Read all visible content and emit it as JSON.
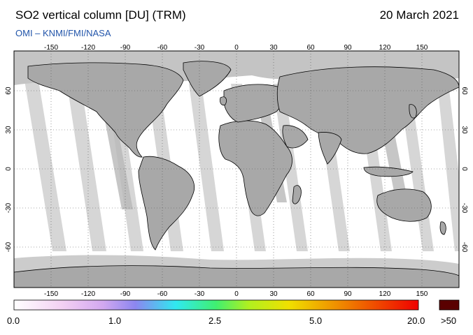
{
  "header": {
    "title": "SO2 vertical column [DU] (TRM)",
    "date": "20 March 2021",
    "credit": "OMI  –  KNMI/FMI/NASA"
  },
  "map": {
    "lon_ticks": [
      "-150",
      "-120",
      "-90",
      "-60",
      "-30",
      "0",
      "30",
      "60",
      "90",
      "120",
      "150"
    ],
    "lat_ticks": [
      "60",
      "30",
      "0",
      "-30",
      "-60"
    ],
    "colors": {
      "ocean": "#ffffff",
      "land": "#a9a9a9",
      "no_data": "#cccccc",
      "swath_gap": "#dadada"
    }
  },
  "colorbar": {
    "labels": [
      "0.0",
      "1.0",
      "2.5",
      "5.0",
      "20.0",
      ">50"
    ],
    "overflow_color": "#5a0000",
    "stops": [
      "#ffffff",
      "#f3d0f3",
      "#c8a0f0",
      "#8080f0",
      "#30e0f0",
      "#40f070",
      "#b0f020",
      "#f0e000",
      "#f08000",
      "#f00000"
    ]
  }
}
